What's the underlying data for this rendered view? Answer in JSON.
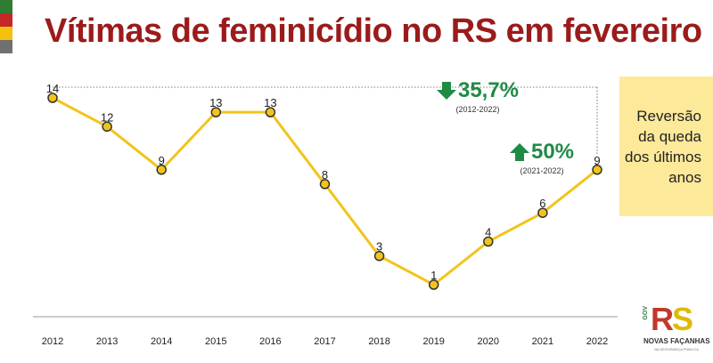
{
  "title": "Vítimas de feminicídio no RS em fevereiro",
  "flag_colors": [
    "#2e7d32",
    "#c62828",
    "#f4c20d",
    "#707070"
  ],
  "colors": {
    "line": "#f2c41b",
    "marker_fill": "#f2c41b",
    "marker_stroke": "#333333",
    "up": "#1e8b45",
    "down": "#1e8b45"
  },
  "chart_data": {
    "type": "line",
    "title": "Vítimas de feminicídio no RS em fevereiro",
    "xlabel": "",
    "ylabel": "",
    "categories": [
      "2012",
      "2013",
      "2014",
      "2015",
      "2016",
      "2017",
      "2018",
      "2019",
      "2020",
      "2021",
      "2022"
    ],
    "values": [
      14,
      12,
      9,
      13,
      13,
      8,
      3,
      1,
      4,
      6,
      9
    ],
    "ylim": [
      1,
      14
    ],
    "grid": false,
    "legend": "none",
    "annotations": [
      {
        "text": "35,7%",
        "direction": "down",
        "period": "(2012-2022)"
      },
      {
        "text": "50%",
        "direction": "up",
        "period": "(2021-2022)"
      }
    ]
  },
  "callout": "Reversão da queda dos últimos anos",
  "logo": {
    "gov_label": "GOV",
    "r": "R",
    "s": "S",
    "name": "NOVAS FAÇANHAS",
    "subtitle": "NA SEGURANÇA PÚBLICA"
  }
}
